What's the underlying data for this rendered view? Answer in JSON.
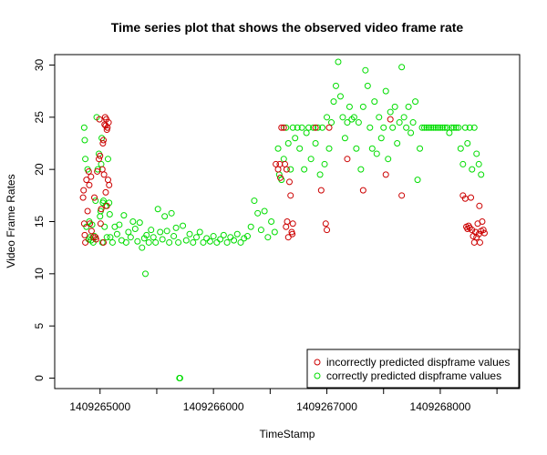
{
  "chart_data": {
    "type": "scatter",
    "title": "Time series plot that shows the observed video frame rate",
    "xlabel": "TimeStamp",
    "ylabel": "Video Frame Rates",
    "xlim": [
      1409264600,
      1409268700
    ],
    "ylim": [
      -1,
      31
    ],
    "x_ticks": [
      1409265000,
      1409265500,
      1409266000,
      1409266500,
      1409267000,
      1409267500,
      1409268000,
      1409268500
    ],
    "x_tick_labels": [
      "1409265000",
      "",
      "1409266000",
      "",
      "1409267000",
      "",
      "1409268000",
      ""
    ],
    "y_ticks": [
      0,
      5,
      10,
      15,
      20,
      25,
      30
    ],
    "y_tick_labels": [
      "0",
      "5",
      "10",
      "15",
      "20",
      "25",
      "30"
    ],
    "grid": false,
    "legend_position": "bottom-right",
    "series": [
      {
        "name": "incorrectly predicted dispframe values",
        "color": "#cc0000",
        "points": [
          [
            1409264850,
            17.3
          ],
          [
            1409264855,
            18.0
          ],
          [
            1409264860,
            14.8
          ],
          [
            1409264865,
            13.7
          ],
          [
            1409264870,
            13.0
          ],
          [
            1409264880,
            19.0
          ],
          [
            1409264890,
            16.0
          ],
          [
            1409264900,
            19.8
          ],
          [
            1409264905,
            18.5
          ],
          [
            1409264910,
            14.8
          ],
          [
            1409264920,
            19.3
          ],
          [
            1409264925,
            14.1
          ],
          [
            1409264940,
            13.5
          ],
          [
            1409264950,
            17.3
          ],
          [
            1409264960,
            13.5
          ],
          [
            1409264965,
            13.3
          ],
          [
            1409264975,
            19.8
          ],
          [
            1409264990,
            21.0
          ],
          [
            1409264995,
            24.8
          ],
          [
            1409265000,
            21.3
          ],
          [
            1409265005,
            14.8
          ],
          [
            1409265010,
            16.2
          ],
          [
            1409265020,
            20.0
          ],
          [
            1409265025,
            22.5
          ],
          [
            1409265030,
            22.8
          ],
          [
            1409265040,
            24.3
          ],
          [
            1409265045,
            25.0
          ],
          [
            1409265050,
            24.2
          ],
          [
            1409265055,
            24.8
          ],
          [
            1409265060,
            23.8
          ],
          [
            1409265065,
            24.0
          ],
          [
            1409265070,
            19.0
          ],
          [
            1409265075,
            24.5
          ],
          [
            1409265080,
            18.5
          ],
          [
            1409265030,
            13.0
          ],
          [
            1409265050,
            17.8
          ],
          [
            1409265060,
            16.5
          ],
          [
            1409265035,
            19.5
          ],
          [
            1409266550,
            20.5
          ],
          [
            1409266570,
            20.0
          ],
          [
            1409266585,
            20.5
          ],
          [
            1409266590,
            19.2
          ],
          [
            1409266600,
            24.0
          ],
          [
            1409266620,
            24.0
          ],
          [
            1409266630,
            20.5
          ],
          [
            1409266640,
            14.5
          ],
          [
            1409266645,
            20.0
          ],
          [
            1409266650,
            15.0
          ],
          [
            1409266660,
            13.5
          ],
          [
            1409266670,
            18.8
          ],
          [
            1409266680,
            17.5
          ],
          [
            1409266690,
            14.0
          ],
          [
            1409266695,
            13.8
          ],
          [
            1409266700,
            14.8
          ],
          [
            1409266900,
            24.0
          ],
          [
            1409266950,
            18.0
          ],
          [
            1409266990,
            14.8
          ],
          [
            1409267000,
            14.2
          ],
          [
            1409267020,
            24.0
          ],
          [
            1409267180,
            21.0
          ],
          [
            1409267320,
            18.0
          ],
          [
            1409267520,
            19.5
          ],
          [
            1409267560,
            24.8
          ],
          [
            1409267660,
            17.5
          ],
          [
            1409268200,
            17.5
          ],
          [
            1409268220,
            17.2
          ],
          [
            1409268230,
            14.5
          ],
          [
            1409268240,
            14.3
          ],
          [
            1409268250,
            14.6
          ],
          [
            1409268260,
            14.4
          ],
          [
            1409268270,
            17.3
          ],
          [
            1409268280,
            14.2
          ],
          [
            1409268290,
            13.6
          ],
          [
            1409268300,
            13.0
          ],
          [
            1409268310,
            14.0
          ],
          [
            1409268320,
            13.5
          ],
          [
            1409268330,
            14.8
          ],
          [
            1409268340,
            13.8
          ],
          [
            1409268345,
            16.5
          ],
          [
            1409268350,
            13.0
          ],
          [
            1409268360,
            14.1
          ],
          [
            1409268370,
            15.0
          ],
          [
            1409268380,
            14.2
          ],
          [
            1409268390,
            13.9
          ]
        ]
      },
      {
        "name": "correctly predicted dispframe values",
        "color": "#00dd00",
        "points": [
          [
            1409264860,
            24.0
          ],
          [
            1409264865,
            22.8
          ],
          [
            1409264870,
            21.0
          ],
          [
            1409264880,
            14.5
          ],
          [
            1409264890,
            20.0
          ],
          [
            1409264900,
            13.3
          ],
          [
            1409264905,
            15.0
          ],
          [
            1409264910,
            13.5
          ],
          [
            1409264920,
            13.2
          ],
          [
            1409264930,
            14.7
          ],
          [
            1409264940,
            13.0
          ],
          [
            1409264950,
            13.6
          ],
          [
            1409264960,
            17.0
          ],
          [
            1409264970,
            25.0
          ],
          [
            1409264980,
            20.0
          ],
          [
            1409264990,
            21.5
          ],
          [
            1409265000,
            15.5
          ],
          [
            1409265005,
            16.0
          ],
          [
            1409265010,
            20.5
          ],
          [
            1409265015,
            23.0
          ],
          [
            1409265020,
            13.0
          ],
          [
            1409265025,
            16.8
          ],
          [
            1409265030,
            17.0
          ],
          [
            1409265040,
            14.5
          ],
          [
            1409265050,
            16.5
          ],
          [
            1409265060,
            13.5
          ],
          [
            1409265070,
            21.0
          ],
          [
            1409265080,
            16.8
          ],
          [
            1409265085,
            15.7
          ],
          [
            1409265090,
            13.5
          ],
          [
            1409265110,
            13.0
          ],
          [
            1409265130,
            14.5
          ],
          [
            1409265150,
            13.8
          ],
          [
            1409265170,
            14.7
          ],
          [
            1409265190,
            13.2
          ],
          [
            1409265210,
            15.6
          ],
          [
            1409265230,
            13.0
          ],
          [
            1409265250,
            14.0
          ],
          [
            1409265270,
            13.5
          ],
          [
            1409265290,
            15.0
          ],
          [
            1409265310,
            14.3
          ],
          [
            1409265330,
            13.1
          ],
          [
            1409265350,
            14.9
          ],
          [
            1409265370,
            12.5
          ],
          [
            1409265390,
            13.4
          ],
          [
            1409265400,
            10.0
          ],
          [
            1409265410,
            13.7
          ],
          [
            1409265430,
            13.0
          ],
          [
            1409265450,
            14.2
          ],
          [
            1409265470,
            13.5
          ],
          [
            1409265490,
            13.0
          ],
          [
            1409265510,
            16.2
          ],
          [
            1409265530,
            14.0
          ],
          [
            1409265550,
            13.3
          ],
          [
            1409265570,
            15.5
          ],
          [
            1409265590,
            14.1
          ],
          [
            1409265610,
            13.0
          ],
          [
            1409265630,
            15.8
          ],
          [
            1409265650,
            13.6
          ],
          [
            1409265670,
            14.4
          ],
          [
            1409265690,
            13.0
          ],
          [
            1409265700,
            0.0
          ],
          [
            1409265705,
            0.0
          ],
          [
            1409265730,
            14.6
          ],
          [
            1409265760,
            13.2
          ],
          [
            1409265790,
            13.8
          ],
          [
            1409265820,
            13.0
          ],
          [
            1409265850,
            13.5
          ],
          [
            1409265880,
            14.0
          ],
          [
            1409265910,
            13.0
          ],
          [
            1409265940,
            13.4
          ],
          [
            1409265970,
            13.1
          ],
          [
            1409266000,
            13.6
          ],
          [
            1409266030,
            13.0
          ],
          [
            1409266060,
            13.3
          ],
          [
            1409266090,
            13.7
          ],
          [
            1409266120,
            13.0
          ],
          [
            1409266150,
            13.5
          ],
          [
            1409266180,
            13.2
          ],
          [
            1409266210,
            13.8
          ],
          [
            1409266240,
            13.0
          ],
          [
            1409266270,
            13.4
          ],
          [
            1409266300,
            13.6
          ],
          [
            1409266330,
            14.5
          ],
          [
            1409266360,
            17.0
          ],
          [
            1409266390,
            15.8
          ],
          [
            1409266420,
            14.2
          ],
          [
            1409266450,
            16.0
          ],
          [
            1409266480,
            13.5
          ],
          [
            1409266510,
            15.0
          ],
          [
            1409266540,
            14.0
          ],
          [
            1409266570,
            22.0
          ],
          [
            1409266580,
            19.5
          ],
          [
            1409266600,
            19.0
          ],
          [
            1409266620,
            21.0
          ],
          [
            1409266640,
            24.0
          ],
          [
            1409266660,
            22.5
          ],
          [
            1409266680,
            20.0
          ],
          [
            1409266700,
            24.0
          ],
          [
            1409266720,
            23.0
          ],
          [
            1409266740,
            24.0
          ],
          [
            1409266760,
            22.0
          ],
          [
            1409266780,
            24.0
          ],
          [
            1409266800,
            20.0
          ],
          [
            1409266820,
            23.5
          ],
          [
            1409266840,
            24.0
          ],
          [
            1409266860,
            21.0
          ],
          [
            1409266880,
            24.0
          ],
          [
            1409266900,
            22.5
          ],
          [
            1409266920,
            24.0
          ],
          [
            1409266940,
            19.5
          ],
          [
            1409266960,
            24.0
          ],
          [
            1409266980,
            20.5
          ],
          [
            1409267000,
            25.0
          ],
          [
            1409267020,
            22.0
          ],
          [
            1409267040,
            24.5
          ],
          [
            1409267060,
            26.5
          ],
          [
            1409267080,
            28.0
          ],
          [
            1409267100,
            30.3
          ],
          [
            1409267120,
            27.0
          ],
          [
            1409267140,
            25.0
          ],
          [
            1409267160,
            23.0
          ],
          [
            1409267180,
            24.5
          ],
          [
            1409267200,
            26.0
          ],
          [
            1409267220,
            24.8
          ],
          [
            1409267240,
            25.0
          ],
          [
            1409267260,
            22.0
          ],
          [
            1409267280,
            24.5
          ],
          [
            1409267300,
            20.0
          ],
          [
            1409267320,
            26.0
          ],
          [
            1409267340,
            29.5
          ],
          [
            1409267360,
            28.0
          ],
          [
            1409267380,
            24.0
          ],
          [
            1409267400,
            22.0
          ],
          [
            1409267420,
            26.5
          ],
          [
            1409267440,
            21.5
          ],
          [
            1409267460,
            25.0
          ],
          [
            1409267480,
            23.0
          ],
          [
            1409267500,
            24.0
          ],
          [
            1409267520,
            27.5
          ],
          [
            1409267540,
            21.0
          ],
          [
            1409267560,
            25.5
          ],
          [
            1409267580,
            24.0
          ],
          [
            1409267600,
            26.0
          ],
          [
            1409267620,
            22.5
          ],
          [
            1409267640,
            24.5
          ],
          [
            1409267660,
            29.8
          ],
          [
            1409267680,
            25.0
          ],
          [
            1409267700,
            24.0
          ],
          [
            1409267720,
            26.0
          ],
          [
            1409267740,
            23.5
          ],
          [
            1409267760,
            24.5
          ],
          [
            1409267780,
            26.5
          ],
          [
            1409267800,
            19.0
          ],
          [
            1409267820,
            22.0
          ],
          [
            1409267840,
            24.0
          ],
          [
            1409267860,
            24.0
          ],
          [
            1409267880,
            24.0
          ],
          [
            1409267900,
            24.0
          ],
          [
            1409267920,
            24.0
          ],
          [
            1409267940,
            24.0
          ],
          [
            1409267960,
            24.0
          ],
          [
            1409267980,
            24.0
          ],
          [
            1409268000,
            24.0
          ],
          [
            1409268020,
            24.0
          ],
          [
            1409268040,
            24.0
          ],
          [
            1409268060,
            24.0
          ],
          [
            1409268080,
            23.5
          ],
          [
            1409268100,
            24.0
          ],
          [
            1409268120,
            24.0
          ],
          [
            1409268140,
            24.0
          ],
          [
            1409268160,
            24.0
          ],
          [
            1409268180,
            22.0
          ],
          [
            1409268200,
            20.5
          ],
          [
            1409268220,
            24.0
          ],
          [
            1409268240,
            22.5
          ],
          [
            1409268260,
            24.0
          ],
          [
            1409268280,
            20.0
          ],
          [
            1409268300,
            24.0
          ],
          [
            1409268320,
            21.5
          ],
          [
            1409268340,
            20.5
          ],
          [
            1409268360,
            19.5
          ]
        ]
      }
    ]
  }
}
